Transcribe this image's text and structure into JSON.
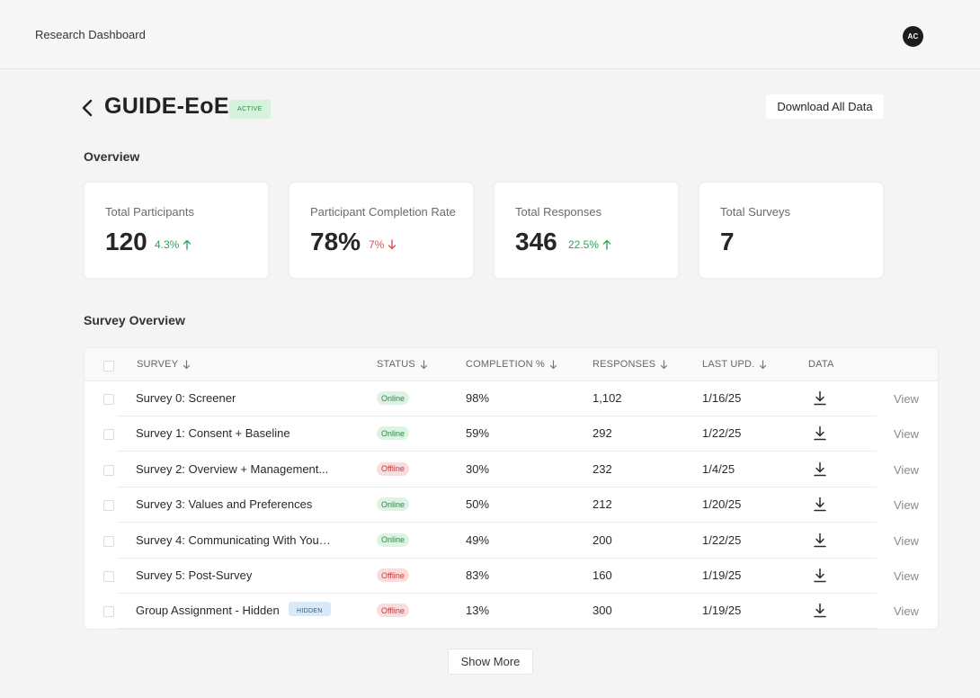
{
  "app": {
    "title": "Research Dashboard",
    "avatar_initials": "AC"
  },
  "header": {
    "back_icon": "chevron-left-icon",
    "project_title": "GUIDE-EoE",
    "status_badge": "ACTIVE",
    "download_label": "Download All Data"
  },
  "overview": {
    "heading": "Overview",
    "cards": [
      {
        "label": "Total Participants",
        "value": "120",
        "delta": "4.3%",
        "trend": "up"
      },
      {
        "label": "Participant Completion Rate",
        "value": "78%",
        "delta": "7%",
        "trend": "down"
      },
      {
        "label": "Total Responses",
        "value": "346",
        "delta": "22.5%",
        "trend": "up"
      },
      {
        "label": "Total Surveys",
        "value": "7",
        "delta": "",
        "trend": ""
      }
    ]
  },
  "survey_table": {
    "heading": "Survey Overview",
    "columns": [
      "SURVEY",
      "STATUS",
      "COMPLETION %",
      "RESPONSES",
      "LAST UPD.",
      "DATA"
    ],
    "view_label": "View",
    "rows": [
      {
        "name": "Survey 0: Screener",
        "status": "Online",
        "completion": "98%",
        "responses": "1,102",
        "updated": "1/16/25"
      },
      {
        "name": "Survey 1: Consent + Baseline",
        "status": "Online",
        "completion": "59%",
        "responses": "292",
        "updated": "1/22/25"
      },
      {
        "name": "Survey 2: Overview + Management...",
        "status": "Offline",
        "completion": "30%",
        "responses": "232",
        "updated": "1/4/25"
      },
      {
        "name": "Survey 3: Values and Preferences",
        "status": "Online",
        "completion": "50%",
        "responses": "212",
        "updated": "1/20/25"
      },
      {
        "name": "Survey 4: Communicating With Your...",
        "status": "Online",
        "completion": "49%",
        "responses": "200",
        "updated": "1/22/25"
      },
      {
        "name": "Survey 5: Post-Survey",
        "status": "Offline",
        "completion": "83%",
        "responses": "160",
        "updated": "1/19/25"
      },
      {
        "name": "Group Assignment - Hidden",
        "status": "Offline",
        "completion": "13%",
        "responses": "300",
        "updated": "1/19/25",
        "badge": "HIDDEN"
      }
    ]
  },
  "show_more_label": "Show More",
  "colors": {
    "up": "#2fa35a",
    "down": "#e05050",
    "online_bg": "#def3e3",
    "offline_bg": "#fadcdc"
  }
}
